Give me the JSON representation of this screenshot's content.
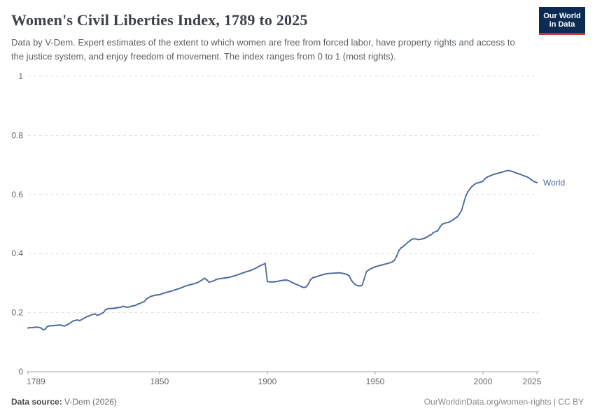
{
  "header": {
    "title": "Women's Civil Liberties Index, 1789 to 2025",
    "subtitle": "Data by V-Dem. Expert estimates of the extent to which women are free from forced labor, have property rights and access to the justice system, and enjoy freedom of movement. The index ranges from 0 to 1 (most rights).",
    "logo": {
      "line1": "Our World",
      "line2": "in Data",
      "bg_color": "#0b2b52",
      "stripe_color": "#c9313d"
    }
  },
  "footer": {
    "datasource_label": "Data source:",
    "datasource_value": " V-Dem (2026)",
    "credit": "OurWorldinData.org/women-rights | CC BY"
  },
  "chart_data": {
    "type": "line",
    "title": "Women's Civil Liberties Index, 1789 to 2025",
    "xlabel": "",
    "ylabel": "",
    "xlim": [
      1789,
      2025
    ],
    "ylim": [
      0,
      1
    ],
    "x_ticks": [
      1789,
      1850,
      1900,
      1950,
      2000,
      2025
    ],
    "y_ticks": [
      0,
      0.2,
      0.4,
      0.6,
      0.8,
      1
    ],
    "grid": "horizontal-dashed",
    "legend_position": "end-of-line-label",
    "colors": {
      "line": "#4c6a9c",
      "grid": "#e0e0e0",
      "axis": "#a7a7a7",
      "tick_text": "#666666"
    },
    "series": [
      {
        "name": "World",
        "color": "#4c6a9c",
        "points": [
          [
            1789,
            0.148
          ],
          [
            1790,
            0.149
          ],
          [
            1791,
            0.149
          ],
          [
            1792,
            0.15
          ],
          [
            1793,
            0.151
          ],
          [
            1794,
            0.15
          ],
          [
            1795,
            0.148
          ],
          [
            1796,
            0.142
          ],
          [
            1797,
            0.144
          ],
          [
            1798,
            0.153
          ],
          [
            1799,
            0.155
          ],
          [
            1800,
            0.156
          ],
          [
            1801,
            0.156
          ],
          [
            1802,
            0.157
          ],
          [
            1803,
            0.157
          ],
          [
            1804,
            0.158
          ],
          [
            1805,
            0.156
          ],
          [
            1806,
            0.155
          ],
          [
            1807,
            0.158
          ],
          [
            1808,
            0.162
          ],
          [
            1809,
            0.167
          ],
          [
            1810,
            0.172
          ],
          [
            1811,
            0.174
          ],
          [
            1812,
            0.175
          ],
          [
            1813,
            0.173
          ],
          [
            1814,
            0.177
          ],
          [
            1815,
            0.181
          ],
          [
            1816,
            0.185
          ],
          [
            1817,
            0.188
          ],
          [
            1818,
            0.191
          ],
          [
            1819,
            0.194
          ],
          [
            1820,
            0.196
          ],
          [
            1821,
            0.191
          ],
          [
            1822,
            0.193
          ],
          [
            1823,
            0.197
          ],
          [
            1824,
            0.2
          ],
          [
            1825,
            0.21
          ],
          [
            1826,
            0.213
          ],
          [
            1827,
            0.214
          ],
          [
            1828,
            0.214
          ],
          [
            1829,
            0.215
          ],
          [
            1830,
            0.216
          ],
          [
            1831,
            0.217
          ],
          [
            1832,
            0.218
          ],
          [
            1833,
            0.221
          ],
          [
            1834,
            0.22
          ],
          [
            1835,
            0.218
          ],
          [
            1836,
            0.219
          ],
          [
            1837,
            0.222
          ],
          [
            1838,
            0.223
          ],
          [
            1839,
            0.225
          ],
          [
            1840,
            0.229
          ],
          [
            1841,
            0.231
          ],
          [
            1842,
            0.235
          ],
          [
            1843,
            0.238
          ],
          [
            1844,
            0.247
          ],
          [
            1845,
            0.251
          ],
          [
            1846,
            0.255
          ],
          [
            1847,
            0.257
          ],
          [
            1848,
            0.259
          ],
          [
            1849,
            0.26
          ],
          [
            1850,
            0.261
          ],
          [
            1851,
            0.263
          ],
          [
            1852,
            0.266
          ],
          [
            1853,
            0.268
          ],
          [
            1854,
            0.27
          ],
          [
            1855,
            0.272
          ],
          [
            1856,
            0.274
          ],
          [
            1857,
            0.277
          ],
          [
            1858,
            0.279
          ],
          [
            1859,
            0.281
          ],
          [
            1860,
            0.284
          ],
          [
            1861,
            0.287
          ],
          [
            1862,
            0.29
          ],
          [
            1863,
            0.292
          ],
          [
            1864,
            0.294
          ],
          [
            1865,
            0.296
          ],
          [
            1866,
            0.298
          ],
          [
            1867,
            0.3
          ],
          [
            1868,
            0.303
          ],
          [
            1869,
            0.307
          ],
          [
            1870,
            0.312
          ],
          [
            1871,
            0.316
          ],
          [
            1872,
            0.31
          ],
          [
            1873,
            0.303
          ],
          [
            1874,
            0.305
          ],
          [
            1875,
            0.307
          ],
          [
            1876,
            0.311
          ],
          [
            1877,
            0.314
          ],
          [
            1878,
            0.315
          ],
          [
            1879,
            0.316
          ],
          [
            1880,
            0.317
          ],
          [
            1881,
            0.318
          ],
          [
            1882,
            0.319
          ],
          [
            1883,
            0.321
          ],
          [
            1884,
            0.323
          ],
          [
            1885,
            0.325
          ],
          [
            1886,
            0.328
          ],
          [
            1887,
            0.33
          ],
          [
            1888,
            0.333
          ],
          [
            1889,
            0.335
          ],
          [
            1890,
            0.338
          ],
          [
            1891,
            0.34
          ],
          [
            1892,
            0.342
          ],
          [
            1893,
            0.345
          ],
          [
            1894,
            0.348
          ],
          [
            1895,
            0.352
          ],
          [
            1896,
            0.356
          ],
          [
            1897,
            0.36
          ],
          [
            1898,
            0.363
          ],
          [
            1899,
            0.366
          ],
          [
            1900,
            0.306
          ],
          [
            1901,
            0.304
          ],
          [
            1902,
            0.304
          ],
          [
            1903,
            0.304
          ],
          [
            1904,
            0.305
          ],
          [
            1905,
            0.306
          ],
          [
            1906,
            0.308
          ],
          [
            1907,
            0.309
          ],
          [
            1908,
            0.31
          ],
          [
            1909,
            0.31
          ],
          [
            1910,
            0.308
          ],
          [
            1911,
            0.304
          ],
          [
            1912,
            0.3
          ],
          [
            1913,
            0.297
          ],
          [
            1914,
            0.294
          ],
          [
            1915,
            0.291
          ],
          [
            1916,
            0.287
          ],
          [
            1917,
            0.285
          ],
          [
            1918,
            0.287
          ],
          [
            1919,
            0.297
          ],
          [
            1920,
            0.311
          ],
          [
            1921,
            0.318
          ],
          [
            1922,
            0.32
          ],
          [
            1923,
            0.322
          ],
          [
            1924,
            0.325
          ],
          [
            1925,
            0.327
          ],
          [
            1926,
            0.329
          ],
          [
            1927,
            0.331
          ],
          [
            1928,
            0.332
          ],
          [
            1929,
            0.333
          ],
          [
            1930,
            0.333
          ],
          [
            1931,
            0.334
          ],
          [
            1932,
            0.334
          ],
          [
            1933,
            0.335
          ],
          [
            1934,
            0.334
          ],
          [
            1935,
            0.333
          ],
          [
            1936,
            0.331
          ],
          [
            1937,
            0.329
          ],
          [
            1938,
            0.324
          ],
          [
            1939,
            0.309
          ],
          [
            1940,
            0.3
          ],
          [
            1941,
            0.294
          ],
          [
            1942,
            0.291
          ],
          [
            1943,
            0.29
          ],
          [
            1944,
            0.293
          ],
          [
            1945,
            0.316
          ],
          [
            1946,
            0.339
          ],
          [
            1947,
            0.344
          ],
          [
            1948,
            0.349
          ],
          [
            1949,
            0.352
          ],
          [
            1950,
            0.355
          ],
          [
            1951,
            0.357
          ],
          [
            1952,
            0.359
          ],
          [
            1953,
            0.361
          ],
          [
            1954,
            0.363
          ],
          [
            1955,
            0.365
          ],
          [
            1956,
            0.367
          ],
          [
            1957,
            0.369
          ],
          [
            1958,
            0.372
          ],
          [
            1959,
            0.378
          ],
          [
            1960,
            0.392
          ],
          [
            1961,
            0.41
          ],
          [
            1962,
            0.419
          ],
          [
            1963,
            0.424
          ],
          [
            1964,
            0.43
          ],
          [
            1965,
            0.437
          ],
          [
            1966,
            0.443
          ],
          [
            1967,
            0.448
          ],
          [
            1968,
            0.45
          ],
          [
            1969,
            0.449
          ],
          [
            1970,
            0.447
          ],
          [
            1971,
            0.448
          ],
          [
            1972,
            0.45
          ],
          [
            1973,
            0.452
          ],
          [
            1974,
            0.456
          ],
          [
            1975,
            0.461
          ],
          [
            1976,
            0.464
          ],
          [
            1977,
            0.471
          ],
          [
            1978,
            0.474
          ],
          [
            1979,
            0.477
          ],
          [
            1980,
            0.489
          ],
          [
            1981,
            0.499
          ],
          [
            1982,
            0.502
          ],
          [
            1983,
            0.504
          ],
          [
            1984,
            0.506
          ],
          [
            1985,
            0.509
          ],
          [
            1986,
            0.514
          ],
          [
            1987,
            0.519
          ],
          [
            1988,
            0.524
          ],
          [
            1989,
            0.533
          ],
          [
            1990,
            0.545
          ],
          [
            1991,
            0.57
          ],
          [
            1992,
            0.594
          ],
          [
            1993,
            0.609
          ],
          [
            1994,
            0.619
          ],
          [
            1995,
            0.628
          ],
          [
            1996,
            0.634
          ],
          [
            1997,
            0.638
          ],
          [
            1998,
            0.64
          ],
          [
            1999,
            0.642
          ],
          [
            2000,
            0.645
          ],
          [
            2001,
            0.654
          ],
          [
            2002,
            0.659
          ],
          [
            2003,
            0.662
          ],
          [
            2004,
            0.665
          ],
          [
            2005,
            0.668
          ],
          [
            2006,
            0.67
          ],
          [
            2007,
            0.672
          ],
          [
            2008,
            0.674
          ],
          [
            2009,
            0.676
          ],
          [
            2010,
            0.678
          ],
          [
            2011,
            0.68
          ],
          [
            2012,
            0.681
          ],
          [
            2013,
            0.679
          ],
          [
            2014,
            0.677
          ],
          [
            2015,
            0.674
          ],
          [
            2016,
            0.671
          ],
          [
            2017,
            0.669
          ],
          [
            2018,
            0.666
          ],
          [
            2019,
            0.663
          ],
          [
            2020,
            0.661
          ],
          [
            2021,
            0.657
          ],
          [
            2022,
            0.652
          ],
          [
            2023,
            0.647
          ],
          [
            2024,
            0.643
          ],
          [
            2025,
            0.64
          ]
        ]
      }
    ]
  }
}
